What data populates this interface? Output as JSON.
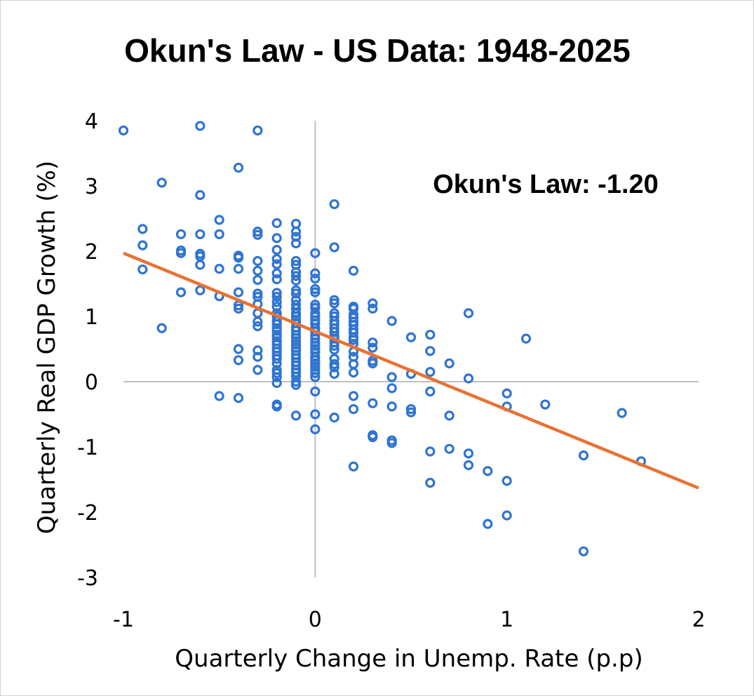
{
  "chart_data": {
    "type": "scatter",
    "title": "Okun's Law - US Data: 1948-2025",
    "xlabel": "Quarterly Change in Unemp. Rate (p.p)",
    "ylabel": "Quarterly Real GDP Growth (%)",
    "annotation": "Okun's Law: -1.20",
    "xlim": [
      -1,
      2
    ],
    "ylim": [
      -3,
      4
    ],
    "xticks": [
      -1,
      0,
      1,
      2
    ],
    "yticks": [
      -3,
      -2,
      -1,
      0,
      1,
      2,
      3,
      4
    ],
    "grid": false,
    "colors": {
      "points": "#2F74D0",
      "trendline": "#E97132",
      "axis": "#bfbfbf"
    },
    "trendline": {
      "slope": -1.2,
      "intercept": 0.77,
      "x_range": [
        -1,
        2
      ]
    },
    "points": [
      [
        -1.0,
        3.85
      ],
      [
        -0.6,
        3.92
      ],
      [
        -0.3,
        3.85
      ],
      [
        -0.4,
        3.28
      ],
      [
        -0.8,
        3.05
      ],
      [
        -0.6,
        2.86
      ],
      [
        0.1,
        2.72
      ],
      [
        -0.5,
        2.48
      ],
      [
        -0.2,
        2.43
      ],
      [
        -0.1,
        2.42
      ],
      [
        -0.9,
        2.34
      ],
      [
        -0.7,
        2.26
      ],
      [
        -0.6,
        2.26
      ],
      [
        -0.5,
        2.26
      ],
      [
        -0.3,
        2.3
      ],
      [
        -0.3,
        2.25
      ],
      [
        -0.2,
        2.2
      ],
      [
        -0.1,
        2.3
      ],
      [
        -0.1,
        2.22
      ],
      [
        -0.9,
        2.09
      ],
      [
        -0.7,
        2.01
      ],
      [
        -0.7,
        1.97
      ],
      [
        -0.6,
        1.96
      ],
      [
        -0.6,
        1.92
      ],
      [
        -0.4,
        1.93
      ],
      [
        -0.4,
        1.9
      ],
      [
        -0.2,
        2.02
      ],
      [
        -0.1,
        2.12
      ],
      [
        0.0,
        1.97
      ],
      [
        0.1,
        2.06
      ],
      [
        -0.6,
        1.79
      ],
      [
        -0.5,
        1.73
      ],
      [
        -0.3,
        1.85
      ],
      [
        -0.4,
        1.73
      ],
      [
        -0.2,
        1.88
      ],
      [
        -0.2,
        1.8
      ],
      [
        -0.1,
        1.85
      ],
      [
        -0.1,
        1.79
      ],
      [
        0.2,
        1.7
      ],
      [
        -0.9,
        1.72
      ],
      [
        -0.3,
        1.7
      ],
      [
        -0.2,
        1.66
      ],
      [
        -0.1,
        1.68
      ],
      [
        -0.1,
        1.62
      ],
      [
        0.0,
        1.66
      ],
      [
        0.0,
        1.58
      ],
      [
        -0.3,
        1.56
      ],
      [
        -0.2,
        1.57
      ],
      [
        -0.1,
        1.55
      ],
      [
        -0.6,
        1.4
      ],
      [
        -0.7,
        1.37
      ],
      [
        -0.4,
        1.37
      ],
      [
        -0.5,
        1.31
      ],
      [
        -0.3,
        1.35
      ],
      [
        -0.3,
        1.3
      ],
      [
        -0.2,
        1.36
      ],
      [
        -0.2,
        1.3
      ],
      [
        -0.1,
        1.4
      ],
      [
        -0.1,
        1.35
      ],
      [
        0.0,
        1.42
      ],
      [
        0.0,
        1.37
      ],
      [
        -0.4,
        1.17
      ],
      [
        -0.4,
        1.12
      ],
      [
        -0.3,
        1.19
      ],
      [
        -0.2,
        1.22
      ],
      [
        -0.2,
        1.15
      ],
      [
        -0.1,
        1.25
      ],
      [
        -0.1,
        1.18
      ],
      [
        -0.1,
        1.12
      ],
      [
        0.0,
        1.18
      ],
      [
        0.0,
        1.13
      ],
      [
        0.1,
        1.25
      ],
      [
        0.1,
        1.2
      ],
      [
        0.2,
        1.15
      ],
      [
        0.2,
        1.12
      ],
      [
        0.3,
        1.2
      ],
      [
        0.3,
        1.12
      ],
      [
        0.8,
        1.05
      ],
      [
        -0.3,
        1.05
      ],
      [
        -0.2,
        1.05
      ],
      [
        -0.2,
        1.0
      ],
      [
        -0.1,
        1.05
      ],
      [
        -0.1,
        1.0
      ],
      [
        0.0,
        1.05
      ],
      [
        0.0,
        1.0
      ],
      [
        0.1,
        1.05
      ],
      [
        0.1,
        1.0
      ],
      [
        0.2,
        1.03
      ],
      [
        0.2,
        0.98
      ],
      [
        0.4,
        0.93
      ],
      [
        -0.3,
        0.92
      ],
      [
        -0.2,
        0.93
      ],
      [
        -0.2,
        0.88
      ],
      [
        -0.1,
        0.95
      ],
      [
        -0.1,
        0.9
      ],
      [
        0.0,
        0.94
      ],
      [
        0.0,
        0.89
      ],
      [
        0.1,
        0.93
      ],
      [
        0.1,
        0.88
      ],
      [
        0.2,
        0.92
      ],
      [
        0.2,
        0.87
      ],
      [
        -0.8,
        0.82
      ],
      [
        -0.3,
        0.85
      ],
      [
        -0.2,
        0.82
      ],
      [
        -0.2,
        0.78
      ],
      [
        -0.1,
        0.83
      ],
      [
        -0.1,
        0.78
      ],
      [
        0.0,
        0.82
      ],
      [
        0.0,
        0.77
      ],
      [
        0.1,
        0.82
      ],
      [
        0.1,
        0.76
      ],
      [
        0.2,
        0.8
      ],
      [
        0.2,
        0.75
      ],
      [
        -0.2,
        0.72
      ],
      [
        -0.2,
        0.68
      ],
      [
        -0.1,
        0.72
      ],
      [
        -0.1,
        0.67
      ],
      [
        0.0,
        0.71
      ],
      [
        0.0,
        0.66
      ],
      [
        0.1,
        0.7
      ],
      [
        0.1,
        0.66
      ],
      [
        0.2,
        0.68
      ],
      [
        0.2,
        0.64
      ],
      [
        0.5,
        0.68
      ],
      [
        0.6,
        0.72
      ],
      [
        1.1,
        0.66
      ],
      [
        -0.2,
        0.62
      ],
      [
        -0.2,
        0.57
      ],
      [
        -0.1,
        0.62
      ],
      [
        -0.1,
        0.57
      ],
      [
        0.0,
        0.6
      ],
      [
        0.0,
        0.55
      ],
      [
        0.1,
        0.6
      ],
      [
        0.1,
        0.55
      ],
      [
        0.2,
        0.58
      ],
      [
        0.3,
        0.6
      ],
      [
        -0.4,
        0.5
      ],
      [
        -0.3,
        0.48
      ],
      [
        -0.2,
        0.51
      ],
      [
        -0.2,
        0.46
      ],
      [
        -0.1,
        0.52
      ],
      [
        -0.1,
        0.47
      ],
      [
        0.0,
        0.5
      ],
      [
        0.0,
        0.45
      ],
      [
        0.1,
        0.49
      ],
      [
        0.2,
        0.46
      ],
      [
        0.3,
        0.52
      ],
      [
        0.6,
        0.47
      ],
      [
        -0.4,
        0.33
      ],
      [
        -0.3,
        0.38
      ],
      [
        -0.2,
        0.4
      ],
      [
        -0.2,
        0.35
      ],
      [
        -0.1,
        0.41
      ],
      [
        -0.1,
        0.36
      ],
      [
        0.0,
        0.38
      ],
      [
        0.0,
        0.33
      ],
      [
        0.1,
        0.35
      ],
      [
        0.2,
        0.38
      ],
      [
        0.3,
        0.32
      ],
      [
        0.3,
        0.28
      ],
      [
        0.7,
        0.28
      ],
      [
        -0.2,
        0.28
      ],
      [
        -0.1,
        0.3
      ],
      [
        -0.1,
        0.25
      ],
      [
        0.0,
        0.28
      ],
      [
        0.0,
        0.23
      ],
      [
        0.1,
        0.27
      ],
      [
        0.1,
        0.22
      ],
      [
        0.2,
        0.27
      ],
      [
        -0.3,
        0.18
      ],
      [
        -0.2,
        0.18
      ],
      [
        -0.2,
        0.13
      ],
      [
        -0.1,
        0.19
      ],
      [
        -0.1,
        0.14
      ],
      [
        0.0,
        0.18
      ],
      [
        0.0,
        0.13
      ],
      [
        0.1,
        0.12
      ],
      [
        0.2,
        0.14
      ],
      [
        0.5,
        0.12
      ],
      [
        0.6,
        0.15
      ],
      [
        -0.2,
        0.07
      ],
      [
        -0.1,
        0.08
      ],
      [
        0.0,
        0.07
      ],
      [
        0.4,
        0.07
      ],
      [
        0.8,
        0.05
      ],
      [
        -0.2,
        -0.02
      ],
      [
        -0.1,
        0.0
      ],
      [
        -0.1,
        -0.05
      ],
      [
        0.4,
        -0.1
      ],
      [
        0.0,
        -0.15
      ],
      [
        0.6,
        -0.15
      ],
      [
        1.0,
        -0.18
      ],
      [
        -0.5,
        -0.22
      ],
      [
        -0.4,
        -0.25
      ],
      [
        0.2,
        -0.22
      ],
      [
        -0.2,
        -0.35
      ],
      [
        -0.2,
        -0.38
      ],
      [
        0.3,
        -0.33
      ],
      [
        1.2,
        -0.35
      ],
      [
        1.0,
        -0.38
      ],
      [
        0.4,
        -0.38
      ],
      [
        0.5,
        -0.42
      ],
      [
        0.5,
        -0.47
      ],
      [
        0.2,
        -0.42
      ],
      [
        1.6,
        -0.48
      ],
      [
        -0.1,
        -0.52
      ],
      [
        0.0,
        -0.5
      ],
      [
        0.1,
        -0.55
      ],
      [
        0.7,
        -0.52
      ],
      [
        0.0,
        -0.73
      ],
      [
        0.3,
        -0.85
      ],
      [
        0.3,
        -0.82
      ],
      [
        0.4,
        -0.9
      ],
      [
        0.4,
        -0.94
      ],
      [
        0.7,
        -1.03
      ],
      [
        0.6,
        -1.07
      ],
      [
        0.8,
        -1.1
      ],
      [
        1.4,
        -1.13
      ],
      [
        1.7,
        -1.22
      ],
      [
        0.8,
        -1.28
      ],
      [
        0.2,
        -1.3
      ],
      [
        0.9,
        -1.37
      ],
      [
        1.0,
        -1.52
      ],
      [
        0.6,
        -1.55
      ],
      [
        1.0,
        -2.05
      ],
      [
        0.9,
        -2.18
      ],
      [
        1.4,
        -2.6
      ]
    ]
  }
}
